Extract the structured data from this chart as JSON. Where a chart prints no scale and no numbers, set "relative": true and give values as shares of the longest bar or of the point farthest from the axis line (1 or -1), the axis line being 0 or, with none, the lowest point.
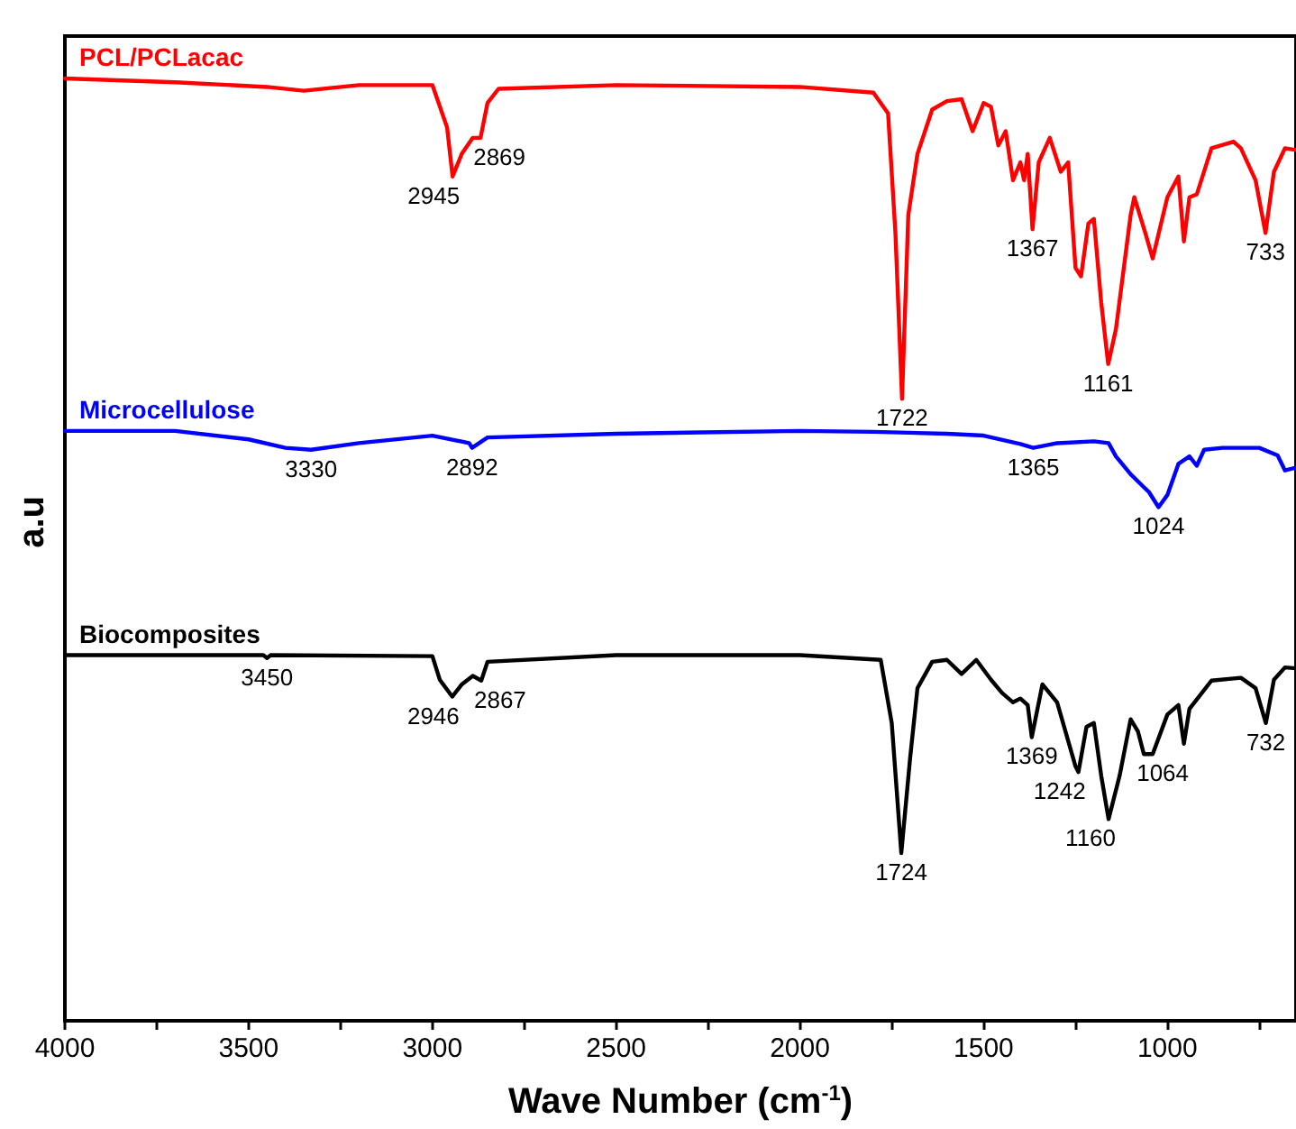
{
  "chart_data": {
    "type": "line",
    "relative": true,
    "xlabel": "Wave Number (cm$^{-1}$)",
    "ylabel": "a.u",
    "marker": "none",
    "legend": false,
    "xlim": [
      4000,
      650
    ],
    "xticks": [
      4000,
      {
        "value": 3750,
        "label": null
      },
      3500,
      {
        "value": 3250,
        "label": null
      },
      3000,
      {
        "value": 2750,
        "label": null
      },
      2500,
      {
        "value": 2250,
        "label": null
      },
      2000,
      {
        "value": 1750,
        "label": null
      },
      1500,
      {
        "value": 1250,
        "label": null
      },
      1000,
      {
        "value": 750,
        "label": null
      }
    ],
    "series": [
      {
        "name": "PCL/PCLacac",
        "color": "#ff0000",
        "x": [
          4000,
          3700,
          3450,
          3350,
          3200,
          3000,
          2960,
          2945,
          2920,
          2890,
          2869,
          2850,
          2820,
          2500,
          2000,
          1800,
          1760,
          1740,
          1722,
          1705,
          1680,
          1640,
          1600,
          1560,
          1530,
          1500,
          1480,
          1460,
          1440,
          1420,
          1400,
          1390,
          1380,
          1367,
          1350,
          1320,
          1290,
          1270,
          1250,
          1235,
          1215,
          1200,
          1180,
          1161,
          1140,
          1100,
          1090,
          1060,
          1040,
          1000,
          970,
          955,
          940,
          920,
          880,
          820,
          800,
          760,
          733,
          710,
          680,
          650
        ],
        "values": [
          1.0,
          0.996,
          0.991,
          0.987,
          0.993,
          0.993,
          0.948,
          0.896,
          0.92,
          0.937,
          0.937,
          0.974,
          0.989,
          0.993,
          0.991,
          0.985,
          0.963,
          0.836,
          0.66,
          0.855,
          0.92,
          0.967,
          0.976,
          0.978,
          0.944,
          0.974,
          0.97,
          0.929,
          0.944,
          0.892,
          0.911,
          0.892,
          0.92,
          0.84,
          0.911,
          0.937,
          0.901,
          0.911,
          0.799,
          0.79,
          0.846,
          0.851,
          0.762,
          0.697,
          0.734,
          0.855,
          0.874,
          0.836,
          0.809,
          0.874,
          0.896,
          0.827,
          0.874,
          0.877,
          0.926,
          0.933,
          0.926,
          0.892,
          0.836,
          0.901,
          0.926,
          0.924
        ]
      },
      {
        "name": "Microcellulose",
        "color": "#0000ff",
        "x": [
          4000,
          3700,
          3500,
          3400,
          3330,
          3200,
          3000,
          2900,
          2892,
          2850,
          2500,
          2000,
          1800,
          1600,
          1500,
          1400,
          1365,
          1340,
          1300,
          1200,
          1160,
          1140,
          1100,
          1050,
          1024,
          1000,
          970,
          940,
          920,
          900,
          850,
          750,
          700,
          680,
          650
        ],
        "values": [
          0.626,
          0.626,
          0.617,
          0.608,
          0.606,
          0.613,
          0.621,
          0.613,
          0.608,
          0.619,
          0.623,
          0.626,
          0.625,
          0.623,
          0.621,
          0.612,
          0.608,
          0.61,
          0.613,
          0.615,
          0.613,
          0.599,
          0.58,
          0.561,
          0.545,
          0.558,
          0.591,
          0.599,
          0.589,
          0.606,
          0.608,
          0.608,
          0.6,
          0.584,
          0.587
        ]
      },
      {
        "name": "Biocomposites",
        "color": "#000000",
        "x": [
          4000,
          3460,
          3450,
          3440,
          3000,
          2980,
          2946,
          2920,
          2890,
          2867,
          2850,
          2500,
          2000,
          1780,
          1750,
          1724,
          1700,
          1680,
          1640,
          1600,
          1560,
          1520,
          1480,
          1450,
          1420,
          1400,
          1380,
          1369,
          1340,
          1300,
          1250,
          1242,
          1220,
          1200,
          1180,
          1160,
          1130,
          1100,
          1080,
          1064,
          1040,
          1000,
          970,
          955,
          940,
          880,
          800,
          760,
          732,
          710,
          680,
          650
        ],
        "values": [
          0.388,
          0.388,
          0.385,
          0.388,
          0.387,
          0.362,
          0.344,
          0.357,
          0.366,
          0.361,
          0.381,
          0.388,
          0.388,
          0.383,
          0.316,
          0.178,
          0.279,
          0.353,
          0.381,
          0.383,
          0.368,
          0.383,
          0.362,
          0.348,
          0.338,
          0.342,
          0.335,
          0.301,
          0.357,
          0.338,
          0.27,
          0.264,
          0.312,
          0.316,
          0.26,
          0.214,
          0.26,
          0.32,
          0.307,
          0.283,
          0.283,
          0.325,
          0.335,
          0.294,
          0.331,
          0.361,
          0.364,
          0.353,
          0.316,
          0.362,
          0.375,
          0.374
        ]
      }
    ],
    "annotations": [
      {
        "text": "2945",
        "x": 2945,
        "y": 0.896
      },
      {
        "text": "2869",
        "x": 2869,
        "y": 0.937
      },
      {
        "text": "1722",
        "x": 1722,
        "y": 0.66
      },
      {
        "text": "1367",
        "x": 1367,
        "y": 0.84
      },
      {
        "text": "1161",
        "x": 1161,
        "y": 0.697
      },
      {
        "text": "733",
        "x": 733,
        "y": 0.836
      },
      {
        "text": "3330",
        "x": 3330,
        "y": 0.606
      },
      {
        "text": "2892",
        "x": 2892,
        "y": 0.608
      },
      {
        "text": "1365",
        "x": 1365,
        "y": 0.608
      },
      {
        "text": "1024",
        "x": 1024,
        "y": 0.545
      },
      {
        "text": "3450",
        "x": 3450,
        "y": 0.385
      },
      {
        "text": "2946",
        "x": 2946,
        "y": 0.344
      },
      {
        "text": "2867",
        "x": 2867,
        "y": 0.361
      },
      {
        "text": "1724",
        "x": 1724,
        "y": 0.178
      },
      {
        "text": "1369",
        "x": 1369,
        "y": 0.301
      },
      {
        "text": "1242",
        "x": 1242,
        "y": 0.264
      },
      {
        "text": "1160",
        "x": 1160,
        "y": 0.214
      },
      {
        "text": "1064",
        "x": 1064,
        "y": 0.283
      },
      {
        "text": "732",
        "x": 732,
        "y": 0.316
      }
    ]
  }
}
